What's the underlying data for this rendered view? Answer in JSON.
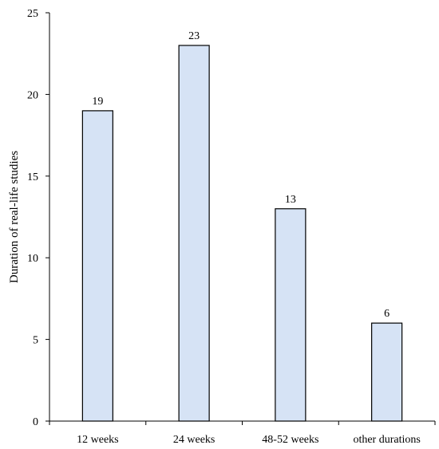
{
  "chart_data": {
    "type": "bar",
    "title": "",
    "xlabel": "",
    "ylabel": "Duration of real-life studies",
    "categories": [
      "12 weeks",
      "24 weeks",
      "48-52 weeks",
      "other durations"
    ],
    "values": [
      19,
      23,
      13,
      6
    ],
    "data_labels": [
      "19",
      "23",
      "13",
      "6"
    ],
    "ylim": [
      0,
      25
    ],
    "yticks": [
      0,
      5,
      10,
      15,
      20,
      25
    ],
    "grid": false,
    "legend": "none",
    "colors": {
      "bar_fill": "#d6e3f5",
      "bar_stroke": "#000000",
      "axis": "#000000"
    }
  }
}
